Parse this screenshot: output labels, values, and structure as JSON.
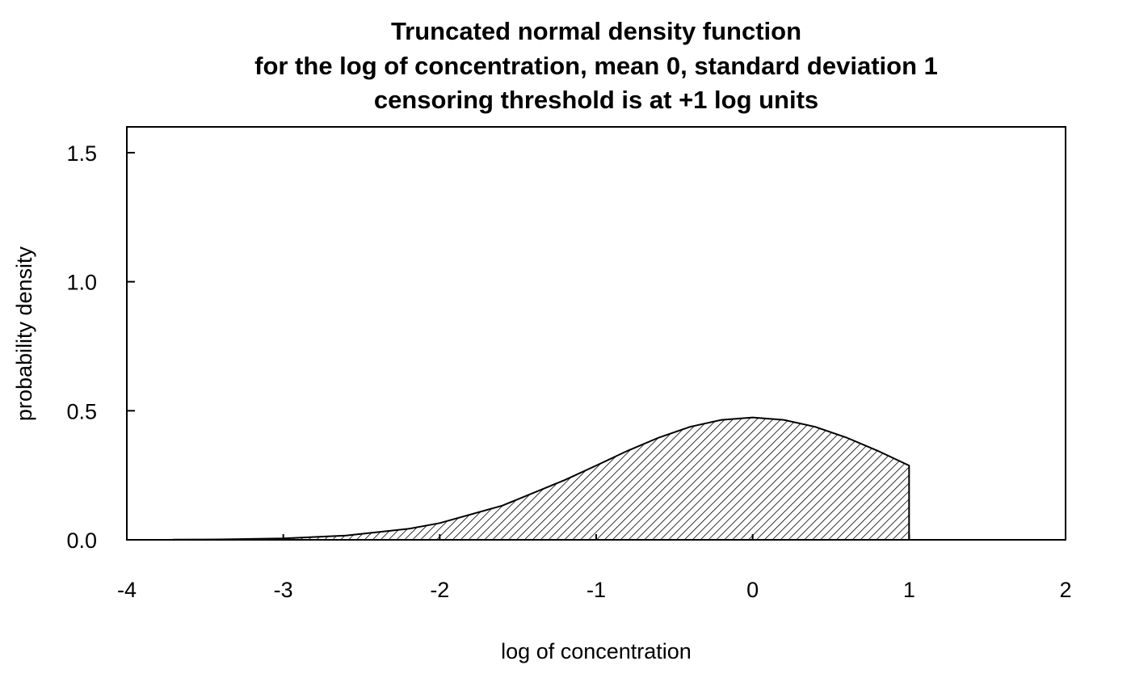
{
  "chart_data": {
    "type": "area",
    "title_lines": [
      "Truncated normal density function",
      "for the log of concentration, mean 0, standard deviation 1",
      "censoring threshold is at +1 log units"
    ],
    "xlabel": "log of concentration",
    "ylabel": "probability density",
    "xlim": [
      -4,
      2
    ],
    "ylim": [
      0,
      1.6
    ],
    "x_ticks": [
      "-4",
      "-3",
      "-2",
      "-1",
      "0",
      "1",
      "2"
    ],
    "y_ticks": [
      "0.0",
      "0.5",
      "1.0",
      "1.5"
    ],
    "grid": false,
    "legend": "none",
    "fill": "diagonal hatching",
    "series": [
      {
        "x": [
          -3.7,
          -3.4,
          -3.0,
          -2.6,
          -2.2,
          -2.0,
          -1.6,
          -1.2,
          -1.0,
          -0.8,
          -0.6,
          -0.4,
          -0.2,
          0.0,
          0.2,
          0.4,
          0.6,
          0.8,
          1.0
        ],
        "values": [
          0.0005,
          0.0015,
          0.0053,
          0.0162,
          0.0425,
          0.0647,
          0.1325,
          0.2321,
          0.2876,
          0.3446,
          0.3961,
          0.4378,
          0.4648,
          0.4742,
          0.4648,
          0.4378,
          0.3961,
          0.3446,
          0.2876
        ]
      }
    ]
  }
}
